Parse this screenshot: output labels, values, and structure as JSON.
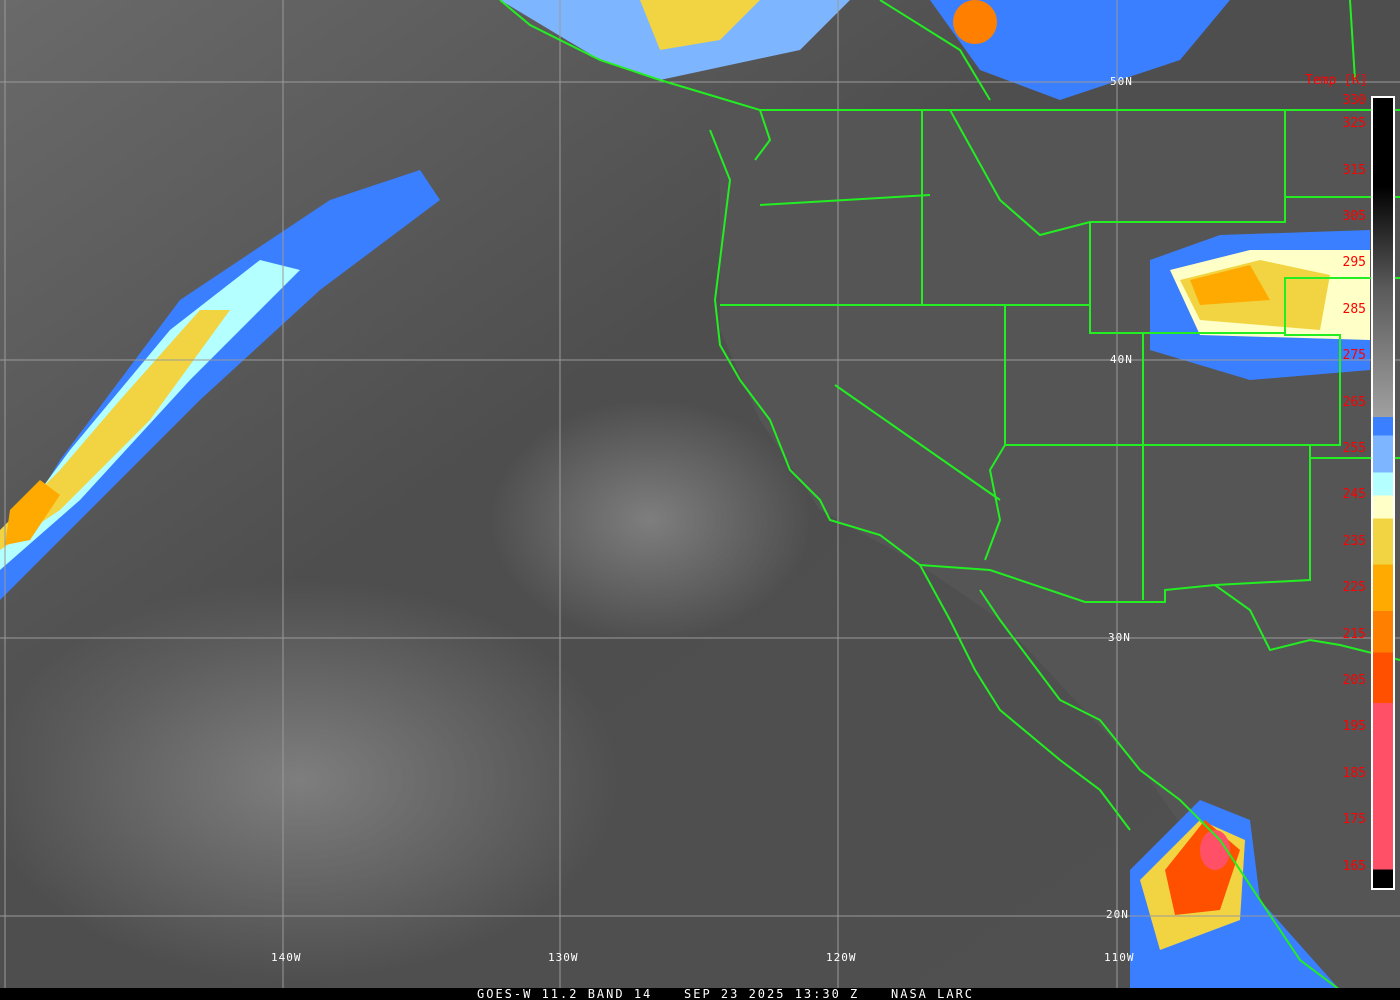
{
  "caption": {
    "satellite": "GOES-W 11.2 BAND 14",
    "datetime": "SEP 23 2025 13:30 Z",
    "source": "NASA LARC"
  },
  "colorbar": {
    "title": "Temp [K]",
    "ticks": [
      "330",
      "325",
      "315",
      "305",
      "295",
      "285",
      "275",
      "265",
      "255",
      "245",
      "235",
      "225",
      "215",
      "205",
      "195",
      "185",
      "175",
      "165"
    ],
    "range": [
      165,
      330
    ],
    "colors": {
      "warm_gray_top": "#000000",
      "gray_low": "#a0a0a0",
      "blue": "#3a7fff",
      "light_blue": "#7eb5ff",
      "cyan": "#b4ffff",
      "pale_yellow": "#ffffc8",
      "yellow": "#f2d442",
      "amber": "#ffaa00",
      "orange": "#ff7f00",
      "red_orange": "#ff5000",
      "pink_red": "#ff5068"
    }
  },
  "grid": {
    "latitudes": [
      "50N",
      "40N",
      "30N",
      "20N"
    ],
    "longitudes": [
      "140W",
      "130W",
      "120W",
      "110W"
    ]
  },
  "colors": {
    "borders": "#22ee22",
    "gridlines": "#9a9a9a",
    "tick_text": "#ff0000"
  }
}
